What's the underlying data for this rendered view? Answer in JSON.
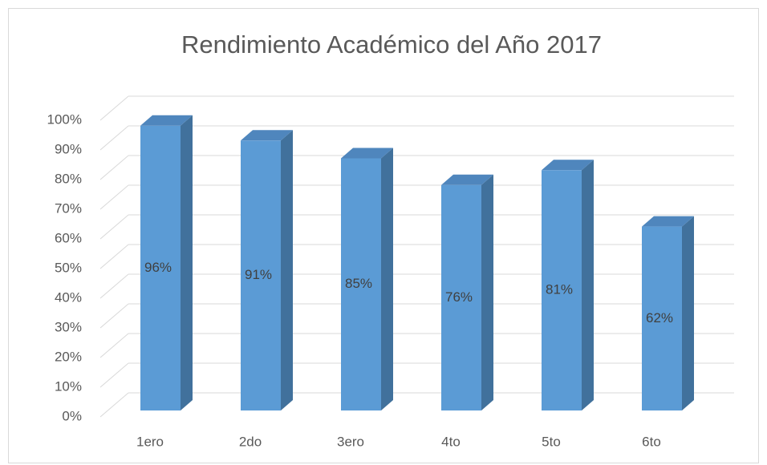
{
  "chart_data": {
    "type": "bar3d",
    "title": "Rendimiento Académico del Año 2017",
    "categories": [
      "1ero",
      "2do",
      "3ero",
      "4to",
      "5to",
      "6to"
    ],
    "values": [
      96,
      91,
      85,
      76,
      81,
      62
    ],
    "value_labels": [
      "96%",
      "91%",
      "85%",
      "76%",
      "81%",
      "62%"
    ],
    "color": "#5b9bd5",
    "ylim": [
      0,
      100
    ],
    "yticks": [
      {
        "value": 0,
        "label": "0%"
      },
      {
        "value": 10,
        "label": "10%"
      },
      {
        "value": 20,
        "label": "20%"
      },
      {
        "value": 30,
        "label": "30%"
      },
      {
        "value": 40,
        "label": "40%"
      },
      {
        "value": 50,
        "label": "50%"
      },
      {
        "value": 60,
        "label": "60%"
      },
      {
        "value": 70,
        "label": "70%"
      },
      {
        "value": 80,
        "label": "80%"
      },
      {
        "value": 90,
        "label": "90%"
      },
      {
        "value": 100,
        "label": "100%"
      }
    ],
    "grid": true
  }
}
